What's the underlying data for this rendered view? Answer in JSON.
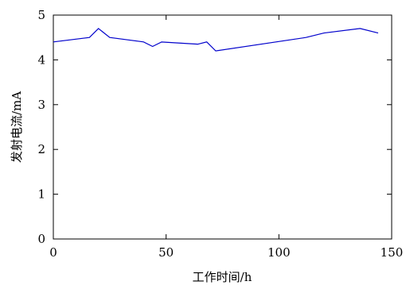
{
  "chart_data": {
    "type": "line",
    "title": "",
    "xlabel": "工作时间/h",
    "ylabel": "发射电流/mA",
    "xlim": [
      0,
      150
    ],
    "ylim": [
      0,
      5
    ],
    "xticks": [
      0,
      50,
      100,
      150
    ],
    "yticks": [
      0,
      1,
      2,
      3,
      4,
      5
    ],
    "grid": false,
    "line_color": "#0000cc",
    "series": [
      {
        "x": [
          0,
          16,
          20,
          25,
          40,
          44,
          48,
          64,
          68,
          72,
          112,
          120,
          136,
          144
        ],
        "y": [
          4.4,
          4.5,
          4.7,
          4.5,
          4.4,
          4.3,
          4.4,
          4.35,
          4.4,
          4.2,
          4.5,
          4.6,
          4.7,
          4.6
        ]
      }
    ]
  }
}
